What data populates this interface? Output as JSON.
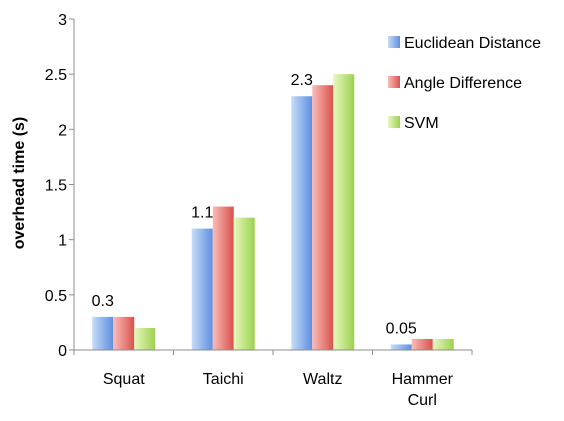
{
  "chart_data": {
    "type": "bar",
    "title": "",
    "xlabel": "",
    "ylabel": "overhead time (s)",
    "ylim": [
      0,
      3
    ],
    "yticks": [
      "0",
      "0.5",
      "1",
      "1.5",
      "2",
      "2.5",
      "3"
    ],
    "categories": [
      [
        "Squat"
      ],
      [
        "Taichi"
      ],
      [
        "Waltz"
      ],
      [
        "Hammer",
        "Curl"
      ]
    ],
    "series": [
      {
        "name": "Euclidean Distance",
        "values": [
          0.3,
          1.1,
          2.3,
          0.05
        ]
      },
      {
        "name": "Angle Difference",
        "values": [
          0.3,
          1.3,
          2.4,
          0.1
        ]
      },
      {
        "name": "SVM",
        "values": [
          0.2,
          1.2,
          2.5,
          0.1
        ]
      }
    ],
    "data_labels": [
      "0.3",
      "1.1",
      "2.3",
      "0.05"
    ],
    "legend_position": "right",
    "grid": false
  },
  "colors": {
    "series": [
      {
        "light": "#c6dcf8",
        "dark": "#5e8fe0"
      },
      {
        "light": "#fbbcb8",
        "dark": "#d9534c"
      },
      {
        "light": "#e8f8be",
        "dark": "#9cd14e"
      }
    ],
    "axis": "#8c8c8c"
  }
}
